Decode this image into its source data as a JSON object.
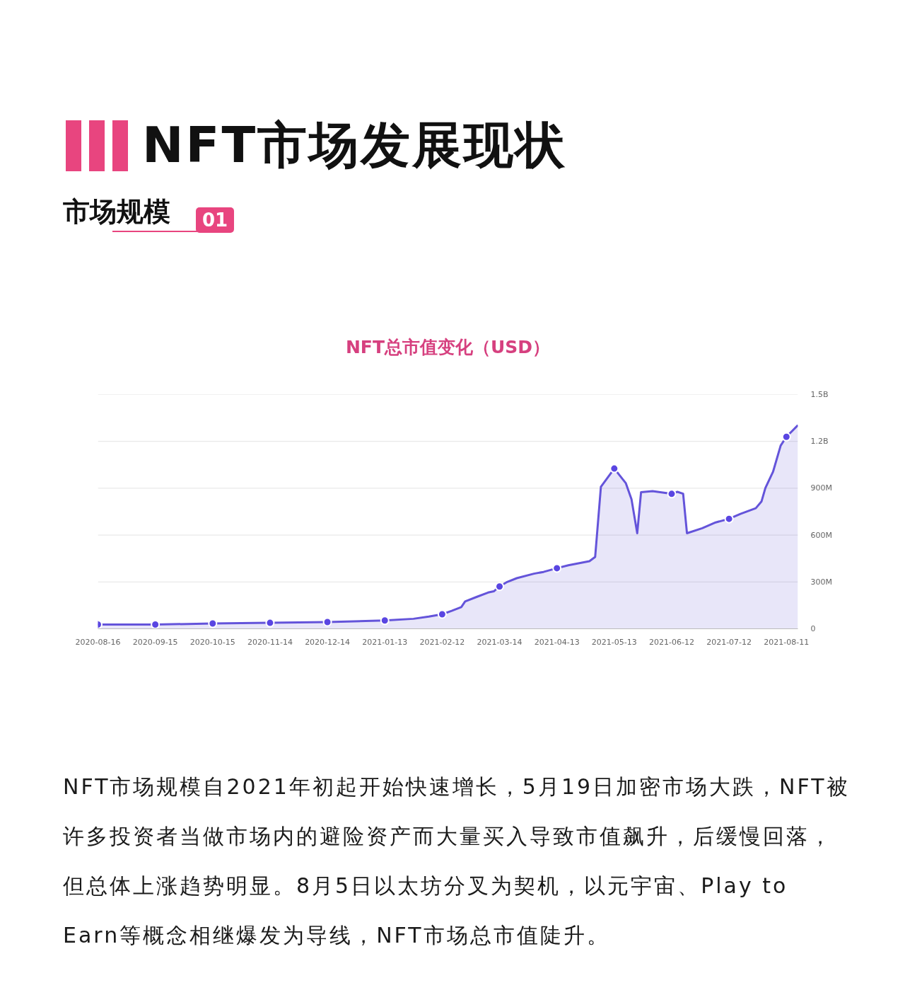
{
  "chart_data": {
    "type": "area",
    "title": "NFT市场发展现状",
    "subtitle": "NFT总市值变化（USD）",
    "annotations": [
      "市场规模",
      "01",
      "NFT市场规模自2021年初起开始快速增长，5月19日加密市场大跌，NFT被许多投资者当做市场内的避险资产而大量买入导致市值飙升，后缓慢回落，但总体上涨趋势明显。8月5日以太坊分叉为契机，以元宇宙、Play to Earn等概念相继爆发为导线，NFT市场总市值陡升。"
    ],
    "series": [
      {
        "color": "#6454da",
        "x": [
          "2020-08-16",
          "2020-09-15",
          "2020-10-15",
          "2020-11-14",
          "2020-12-14",
          "2021-01-13",
          "2021-01-28",
          "2021-02-05",
          "2021-02-12",
          "2021-02-17",
          "2021-02-22",
          "2021-02-24",
          "2021-03-02",
          "2021-03-08",
          "2021-03-11",
          "2021-03-14",
          "2021-03-18",
          "2021-03-23",
          "2021-04-01",
          "2021-04-06",
          "2021-04-13",
          "2021-04-19",
          "2021-04-30",
          "2021-05-03",
          "2021-05-06",
          "2021-05-13",
          "2021-05-19",
          "2021-05-22",
          "2021-05-25",
          "2021-05-27",
          "2021-06-02",
          "2021-06-12",
          "2021-06-15",
          "2021-06-18",
          "2021-06-20",
          "2021-06-28",
          "2021-07-05",
          "2021-07-12",
          "2021-07-18",
          "2021-07-26",
          "2021-07-29",
          "2021-07-31",
          "2021-08-04",
          "2021-08-08",
          "2021-08-11",
          "2021-08-17"
        ],
        "values": [
          27000000,
          27000000,
          34000000,
          38000000,
          43000000,
          53000000,
          64000000,
          78000000,
          93000000,
          115000000,
          139000000,
          175000000,
          204000000,
          232000000,
          240000000,
          271000000,
          300000000,
          324000000,
          353000000,
          364000000,
          388000000,
          407000000,
          433000000,
          460000000,
          909000000,
          1026000000,
          933000000,
          829000000,
          612000000,
          875000000,
          881000000,
          864000000,
          877000000,
          865000000,
          612000000,
          644000000,
          681000000,
          704000000,
          736000000,
          772000000,
          816000000,
          901000000,
          1005000000,
          1173000000,
          1229000000,
          1304000000
        ]
      },
      {
        "type": "scatter",
        "color": "#5a46e2",
        "marker": "circle",
        "x": [
          "2020-08-16",
          "2020-09-15",
          "2020-10-15",
          "2020-11-14",
          "2020-12-14",
          "2021-01-13",
          "2021-02-12",
          "2021-03-14",
          "2021-04-13",
          "2021-05-13",
          "2021-06-12",
          "2021-07-12",
          "2021-08-11"
        ],
        "values": [
          27000000,
          27000000,
          34000000,
          38000000,
          43000000,
          53000000,
          93000000,
          271000000,
          388000000,
          1026000000,
          864000000,
          704000000,
          1229000000
        ]
      }
    ],
    "xlim": [
      "2020-08-16",
      "2021-08-17"
    ],
    "xticks": [
      "2020-08-16",
      "2020-09-15",
      "2020-10-15",
      "2020-11-14",
      "2020-12-14",
      "2021-01-13",
      "2021-02-12",
      "2021-03-14",
      "2021-04-13",
      "2021-05-13",
      "2021-06-12",
      "2021-07-12",
      "2021-08-11"
    ],
    "ylim": [
      0,
      1500000000
    ],
    "yticks": [
      0,
      {
        "value": 300000000,
        "label": "300M"
      },
      {
        "value": 600000000,
        "label": "600M"
      },
      {
        "value": 900000000,
        "label": "900M"
      },
      {
        "value": 1200000000,
        "label": "1.2B"
      },
      {
        "value": 1500000000,
        "label": "1.5B"
      }
    ],
    "grid": "y"
  }
}
